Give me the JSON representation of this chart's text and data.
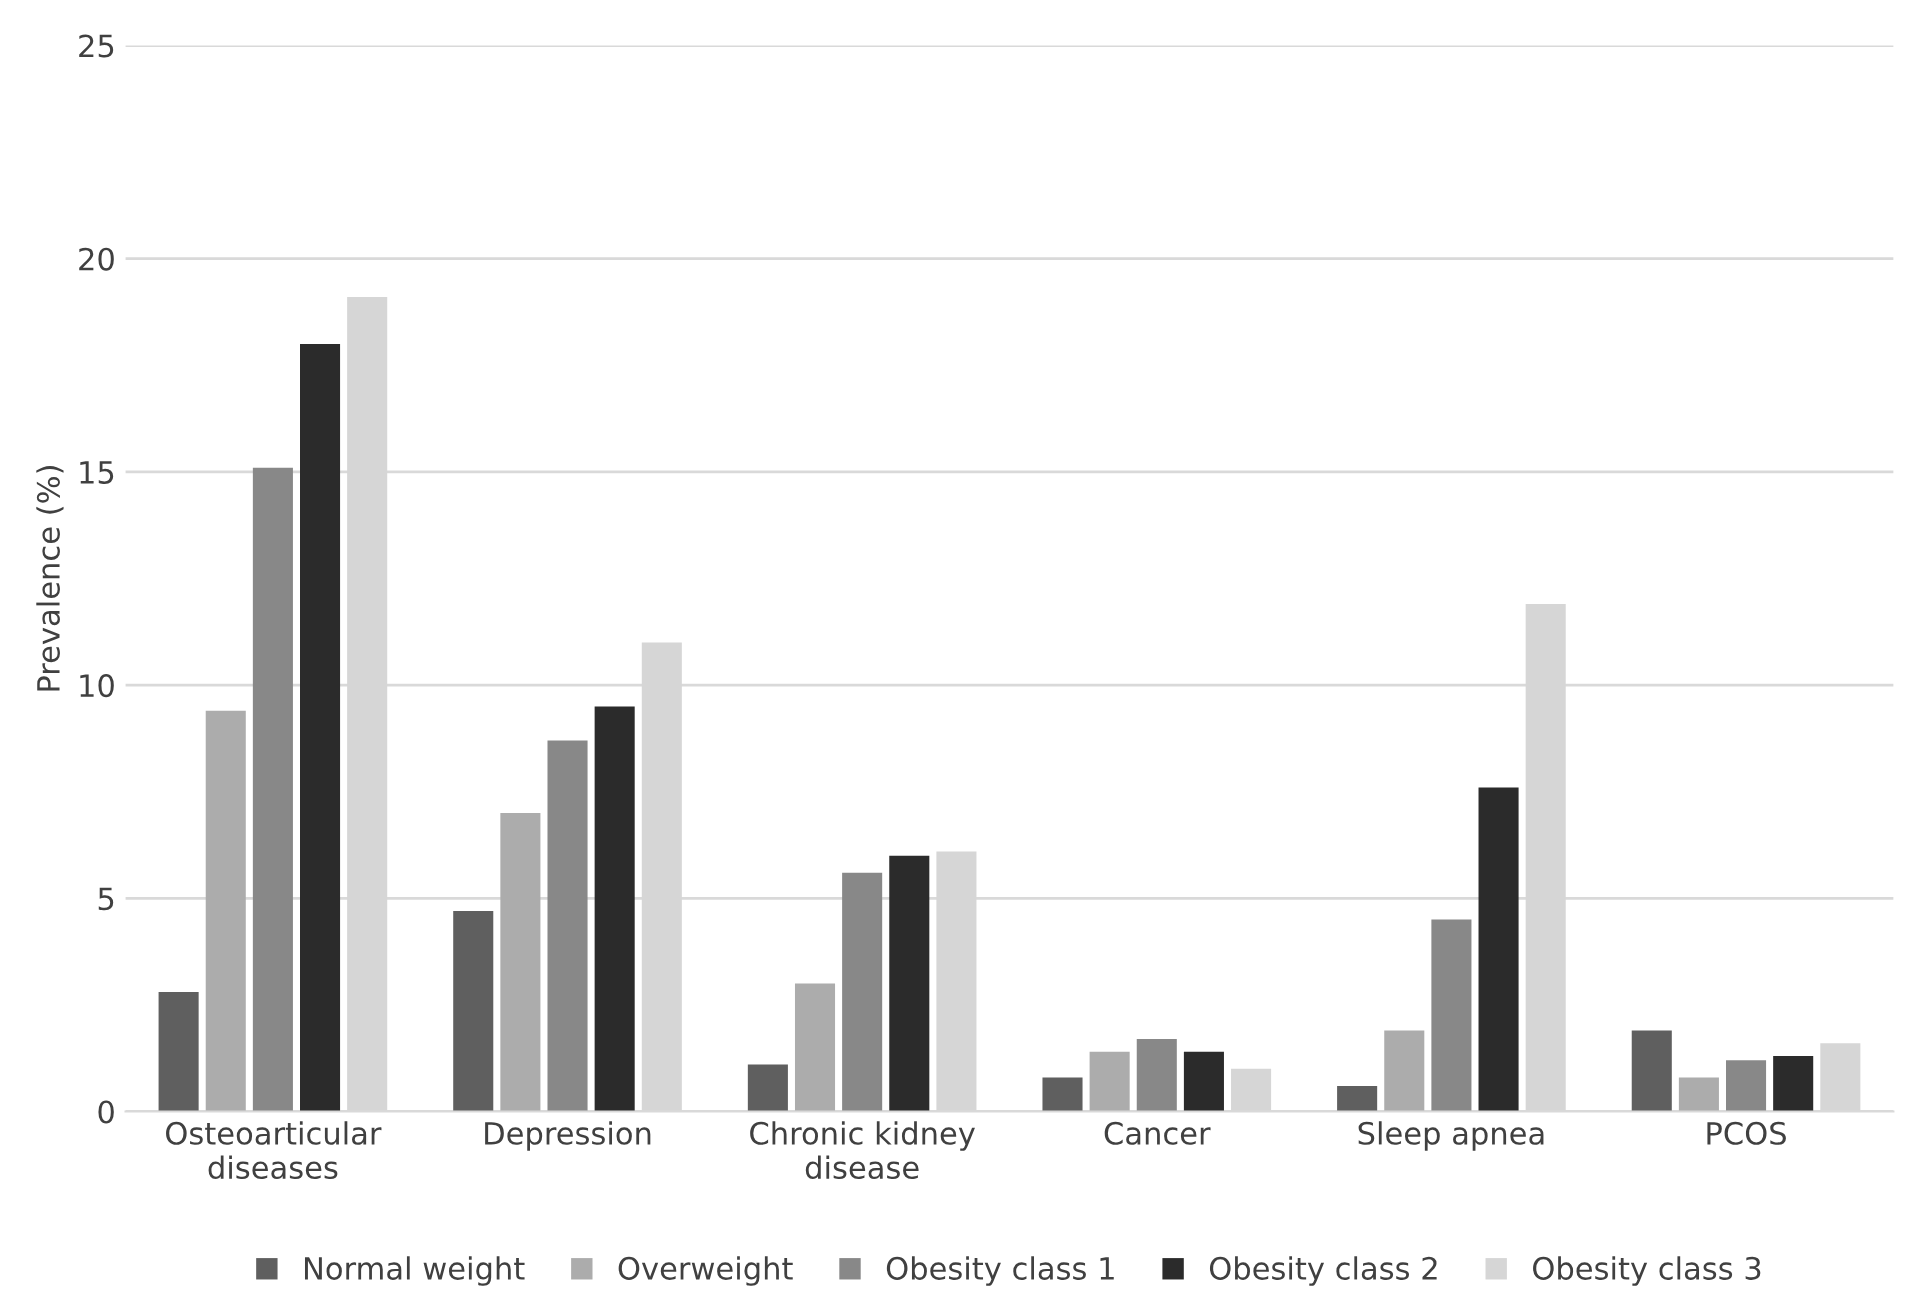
{
  "chart_data": {
    "type": "bar",
    "ylabel": "Prevalence (%)",
    "categories": [
      "Osteoarticular\ndiseases",
      "Depression",
      "Chronic kidney\ndisease",
      "Cancer",
      "Sleep apnea",
      "PCOS"
    ],
    "series": [
      {
        "name": "Normal weight",
        "color": "#5f5f5f",
        "values": [
          2.8,
          4.7,
          1.1,
          0.8,
          0.6,
          1.9
        ]
      },
      {
        "name": "Overweight",
        "color": "#acacac",
        "values": [
          9.4,
          7.0,
          3.0,
          1.4,
          1.9,
          0.8
        ]
      },
      {
        "name": "Obesity class 1",
        "color": "#888888",
        "values": [
          15.1,
          8.7,
          5.6,
          1.7,
          4.5,
          1.2
        ]
      },
      {
        "name": "Obesity class 2",
        "color": "#2b2b2b",
        "values": [
          18.0,
          9.5,
          6.0,
          1.4,
          7.6,
          1.3
        ]
      },
      {
        "name": "Obesity class 3",
        "color": "#d6d6d6",
        "values": [
          19.1,
          11.0,
          6.1,
          1.0,
          11.9,
          1.6
        ]
      }
    ],
    "ylim": [
      0,
      25
    ],
    "yticks": [
      0,
      5,
      10,
      15,
      20,
      25
    ],
    "grid": "y",
    "legend": "bottom"
  }
}
